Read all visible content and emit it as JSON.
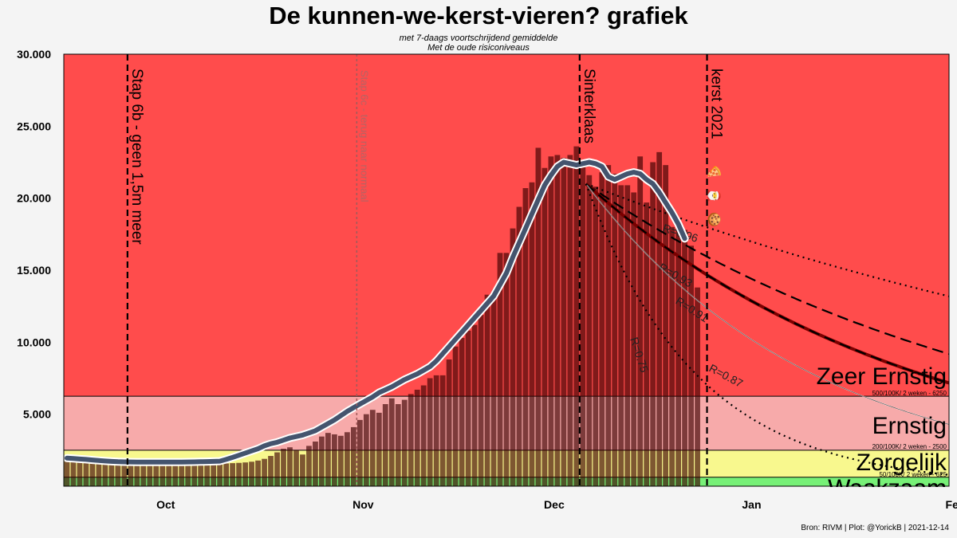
{
  "chart_data": {
    "type": "bar",
    "title": "De kunnen-we-kerst-vieren? grafiek",
    "subtitles": [
      "met 7-daags voortschrijdend gemiddelde",
      "Met de oude risiconiveaus"
    ],
    "source": "Bron: RIVM | Plot: @YorickB  |  2021-12-14",
    "x_range": [
      "2021-09-15",
      "2022-02-01"
    ],
    "x_ticks": [
      {
        "date": "2021-10-01",
        "label": "Oct"
      },
      {
        "date": "2021-11-01",
        "label": "Nov"
      },
      {
        "date": "2021-12-01",
        "label": "Dec"
      },
      {
        "date": "2022-01-01",
        "label": "Jan"
      },
      {
        "date": "2022-02-01",
        "label": "Feb"
      }
    ],
    "y_ticks": [
      {
        "value": 5000,
        "label": "5.000"
      },
      {
        "value": 10000,
        "label": "10.000"
      },
      {
        "value": 15000,
        "label": "15.000"
      },
      {
        "value": 20000,
        "label": "20.000"
      },
      {
        "value": 25000,
        "label": "25.000"
      },
      {
        "value": 30000,
        "label": "30.000"
      }
    ],
    "ylim": [
      0,
      30000
    ],
    "zones": [
      {
        "from": 0,
        "to": 625,
        "color": "#77f077"
      },
      {
        "from": 625,
        "to": 2500,
        "color": "#f8f88e",
        "name": "Zorgelijk",
        "sublabel": "50/100K/ 2 weken - 625"
      },
      {
        "from": 2500,
        "to": 6250,
        "color": "#f7aaaa",
        "name": "Ernstig",
        "sublabel": "200/100K/ 2 weken - 2500"
      },
      {
        "from": 6250,
        "to": 30000,
        "color": "#ff4c4c",
        "name": "Zeer Ernstig",
        "sublabel": "500/100K/ 2 weken - 6250"
      },
      {
        "name": "Waakzaam"
      }
    ],
    "bar_start_date": "2021-09-15",
    "daily_values": [
      1800,
      1750,
      1700,
      1650,
      1600,
      1580,
      1560,
      1540,
      1520,
      1500,
      1480,
      1470,
      1460,
      1450,
      1450,
      1460,
      1470,
      1480,
      1490,
      1500,
      1520,
      1530,
      1540,
      1550,
      1560,
      1580,
      1600,
      1620,
      1650,
      1700,
      1780,
      1900,
      2100,
      2350,
      2600,
      2700,
      2500,
      2200,
      2800,
      3100,
      3450,
      3700,
      3600,
      3500,
      3750,
      4100,
      4600,
      5000,
      5300,
      5100,
      5700,
      6100,
      5700,
      6000,
      6400,
      6700,
      7000,
      7500,
      7700,
      7700,
      8800,
      9700,
      10300,
      10800,
      11200,
      11900,
      13300,
      13300,
      16200,
      16200,
      17900,
      19400,
      20700,
      21100,
      23500,
      22100,
      22900,
      23000,
      22800,
      23000,
      23600,
      22300,
      21600,
      20800,
      21800,
      22300,
      21700,
      20900,
      20900,
      20400,
      22900,
      19700,
      22500,
      23200,
      22300,
      18000,
      18200,
      17800,
      16700,
      13800
    ],
    "series": [
      {
        "name": "7-daags gemiddelde",
        "values": [
          1950,
          1920,
          1890,
          1860,
          1820,
          1780,
          1750,
          1720,
          1700,
          1690,
          1680,
          1670,
          1670,
          1670,
          1670,
          1670,
          1670,
          1670,
          1670,
          1680,
          1690,
          1700,
          1710,
          1720,
          1740,
          1860,
          2000,
          2150,
          2300,
          2450,
          2600,
          2800,
          2950,
          3050,
          3200,
          3350,
          3450,
          3550,
          3700,
          3850,
          4100,
          4350,
          4600,
          4900,
          5200,
          5450,
          5700,
          5950,
          6200,
          6500,
          6700,
          6900,
          7150,
          7400,
          7600,
          7800,
          8050,
          8300,
          8700,
          9200,
          9700,
          10200,
          10700,
          11200,
          11700,
          12200,
          12700,
          13200,
          14000,
          14800,
          15900,
          16900,
          17900,
          18900,
          19900,
          20900,
          21600,
          22200,
          22500,
          22400,
          22300,
          22400,
          22500,
          22400,
          22200,
          21500,
          21300,
          21500,
          21700,
          21800,
          21700,
          21300,
          21000,
          20400,
          19700,
          19000,
          18200,
          17200
        ]
      },
      {
        "name": "R=0.96",
        "R": 0.96,
        "label_pos": "0.96 label"
      },
      {
        "name": "R=0.93",
        "R": 0.93
      },
      {
        "name": "R=0.91",
        "R": 0.91
      },
      {
        "name": "R=0.87",
        "R": 0.87
      },
      {
        "name": "R=0.75",
        "R": 0.75
      }
    ],
    "projection_start": {
      "date": "2021-12-06",
      "value": 21000
    },
    "events": [
      {
        "date": "2021-09-25",
        "label": "Stap 6b - geen 1,5m meer",
        "style": "dashed"
      },
      {
        "date": "2021-10-31",
        "label": "Stap 6c - terug naar normaal",
        "style": "faint"
      },
      {
        "date": "2021-12-05",
        "label": "Sinterklaas",
        "style": "dashed"
      },
      {
        "date": "2021-12-25",
        "label": "kerst 2021",
        "style": "dashed"
      }
    ],
    "annotations": [
      "🍕",
      "🎅",
      "🍪"
    ]
  }
}
